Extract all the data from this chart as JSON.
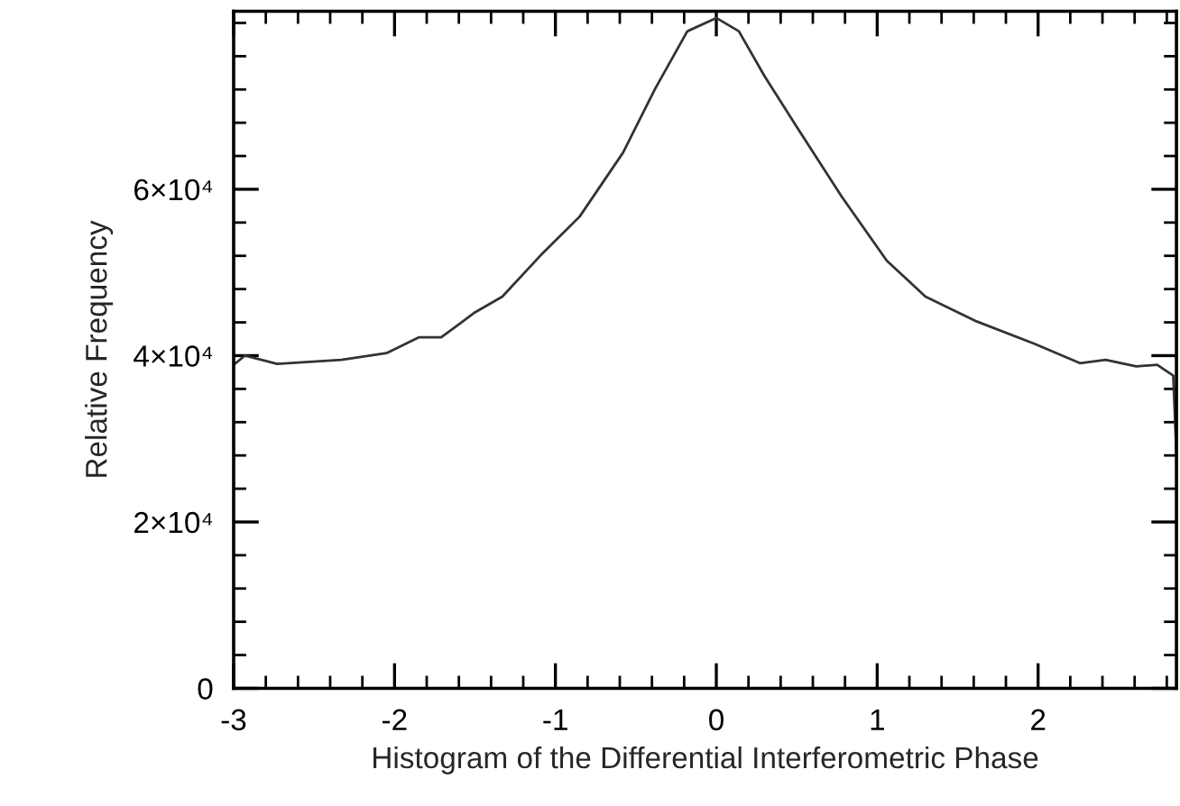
{
  "chart_data": {
    "type": "line",
    "xlabel": "Histogram of the Differential Interferometric Phase",
    "ylabel": "Relative Frequency",
    "x": [
      -3.0,
      -2.93,
      -2.73,
      -2.33,
      -2.05,
      -1.85,
      -1.71,
      -1.5,
      -1.33,
      -1.09,
      -0.85,
      -0.58,
      -0.38,
      -0.18,
      0.0,
      0.14,
      0.3,
      0.5,
      0.78,
      1.06,
      1.3,
      1.62,
      1.98,
      2.26,
      2.42,
      2.61,
      2.74,
      2.84,
      2.86
    ],
    "series": [
      {
        "color": "#333333",
        "values": [
          38900,
          40000,
          39000,
          39500,
          40300,
          42200,
          42200,
          45200,
          47100,
          52100,
          56700,
          64400,
          72100,
          79000,
          80600,
          79000,
          73600,
          67500,
          59100,
          51400,
          47100,
          44100,
          41400,
          39100,
          39500,
          38700,
          38900,
          37600,
          28000
        ]
      }
    ],
    "xlim": [
      -3,
      2.86
    ],
    "ylim": [
      0,
      81400
    ],
    "xticks": [
      -3,
      -2,
      -1,
      0,
      1,
      2
    ],
    "yticks": [
      0,
      {
        "value": 20000,
        "label": "2×10⁴"
      },
      {
        "value": 40000,
        "label": "4×10⁴"
      },
      {
        "value": 60000,
        "label": "6×10⁴"
      }
    ],
    "grid": false,
    "legend": false
  }
}
